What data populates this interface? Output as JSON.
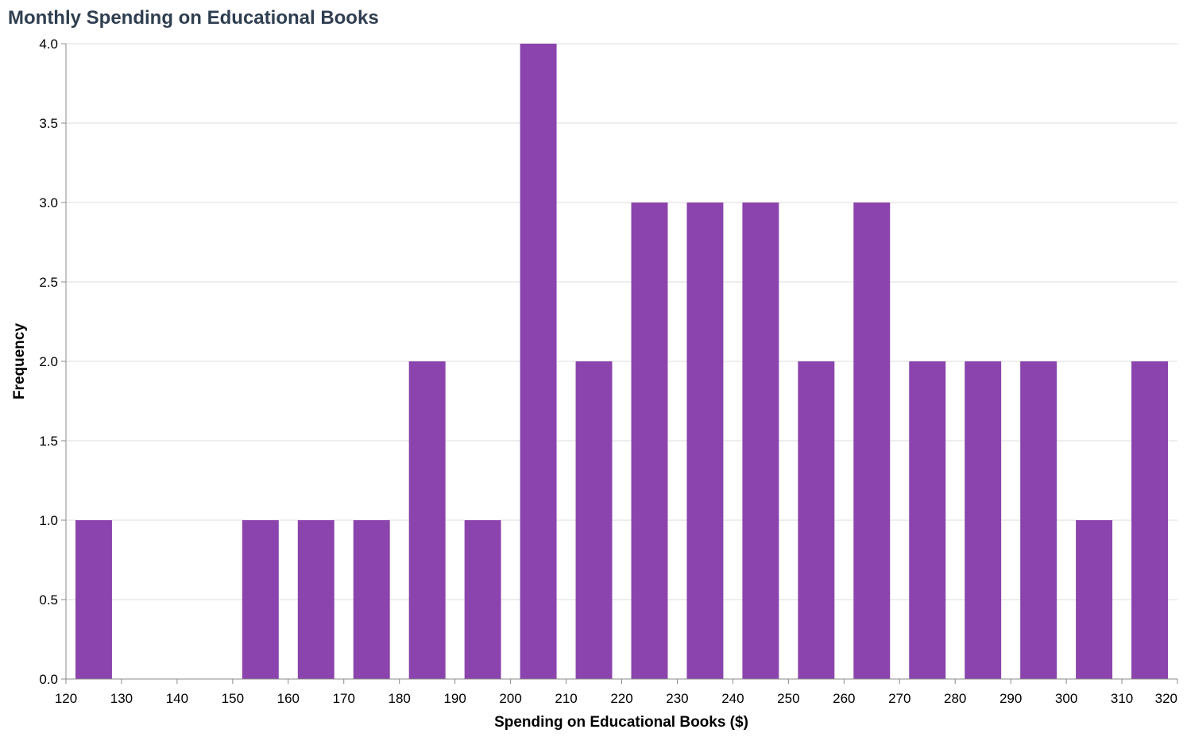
{
  "chart_data": {
    "type": "bar",
    "title": "Monthly Spending on Educational Books",
    "xlabel": "Spending on Educational Books ($)",
    "ylabel": "Frequency",
    "xlim": [
      120,
      320
    ],
    "ylim": [
      0,
      4
    ],
    "x_ticks": [
      120,
      130,
      140,
      150,
      160,
      170,
      180,
      190,
      200,
      210,
      220,
      230,
      240,
      250,
      260,
      270,
      280,
      290,
      300,
      310,
      320
    ],
    "y_ticks": [
      "0.0",
      "0.5",
      "1.0",
      "1.5",
      "2.0",
      "2.5",
      "3.0",
      "3.5",
      "4.0"
    ],
    "grid": true,
    "bar_color": "#8b44ad",
    "bin_width": 10,
    "bins": [
      {
        "start": 120,
        "count": 1
      },
      {
        "start": 150,
        "count": 1
      },
      {
        "start": 160,
        "count": 1
      },
      {
        "start": 170,
        "count": 1
      },
      {
        "start": 180,
        "count": 2
      },
      {
        "start": 190,
        "count": 1
      },
      {
        "start": 200,
        "count": 4
      },
      {
        "start": 210,
        "count": 2
      },
      {
        "start": 220,
        "count": 3
      },
      {
        "start": 230,
        "count": 3
      },
      {
        "start": 240,
        "count": 3
      },
      {
        "start": 250,
        "count": 2
      },
      {
        "start": 260,
        "count": 3
      },
      {
        "start": 270,
        "count": 2
      },
      {
        "start": 280,
        "count": 2
      },
      {
        "start": 290,
        "count": 2
      },
      {
        "start": 300,
        "count": 1
      },
      {
        "start": 310,
        "count": 2
      }
    ]
  }
}
